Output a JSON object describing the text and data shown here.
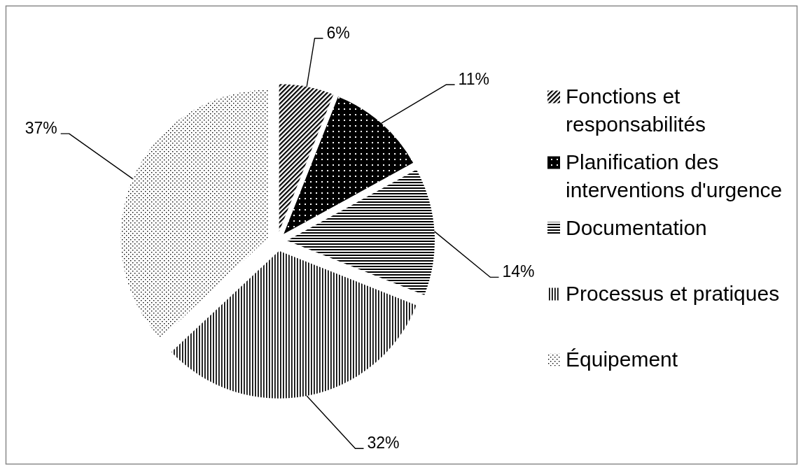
{
  "chart_data": {
    "type": "pie",
    "categories": [
      "Fonctions et responsabilités",
      "Planification des interventions d'urgence",
      "Documentation",
      "Processus et pratiques",
      "Équipement"
    ],
    "values": [
      6,
      11,
      14,
      32,
      37
    ],
    "colors": [
      "#000000",
      "#000000",
      "#000000",
      "#000000",
      "#000000"
    ],
    "value_labels": [
      "6%",
      "11%",
      "14%",
      "32%",
      "37%"
    ],
    "legend": "right"
  }
}
